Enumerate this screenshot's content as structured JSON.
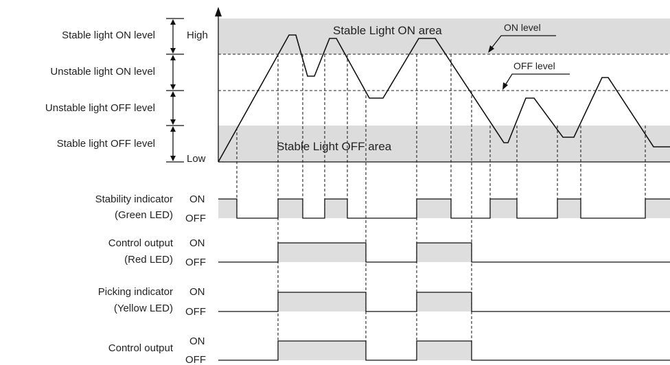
{
  "levels": {
    "stable_on": "Stable light ON level",
    "unstable_on": "Unstable light ON level",
    "unstable_off": "Unstable light OFF level",
    "stable_off": "Stable light OFF level"
  },
  "axis": {
    "high": "High",
    "low": "Low"
  },
  "areas": {
    "on_area": "Stable Light ON area",
    "off_area": "Stable Light OFF area"
  },
  "callouts": {
    "on_level": "ON level",
    "off_level": "OFF level"
  },
  "rows": [
    {
      "name": "Stability indicator",
      "sub": "(Green LED)",
      "on": "ON",
      "off": "OFF"
    },
    {
      "name": "Control output",
      "sub": "(Red LED)",
      "on": "ON",
      "off": "OFF"
    },
    {
      "name": "Picking indicator",
      "sub": "(Yellow LED)",
      "on": "ON",
      "off": "OFF"
    },
    {
      "name": "Control output",
      "sub": "",
      "on": "ON",
      "off": "OFF"
    }
  ]
}
